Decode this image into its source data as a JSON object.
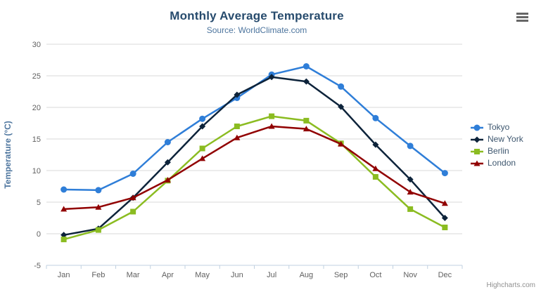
{
  "header": {
    "title": "Monthly Average Temperature",
    "subtitle": "Source: WorldClimate.com"
  },
  "export_menu": {
    "icon": "hamburger-icon"
  },
  "credits": {
    "label": "Highcharts.com"
  },
  "chart_data": {
    "type": "line",
    "title": "Monthly Average Temperature",
    "subtitle": "Source: WorldClimate.com",
    "categories": [
      "Jan",
      "Feb",
      "Mar",
      "Apr",
      "May",
      "Jun",
      "Jul",
      "Aug",
      "Sep",
      "Oct",
      "Nov",
      "Dec"
    ],
    "series": [
      {
        "name": "Tokyo",
        "color": "#2f7ed8",
        "marker": "circle",
        "values": [
          7.0,
          6.9,
          9.5,
          14.5,
          18.2,
          21.5,
          25.2,
          26.5,
          23.3,
          18.3,
          13.9,
          9.6
        ]
      },
      {
        "name": "New York",
        "color": "#0d233a",
        "marker": "diamond",
        "values": [
          -0.2,
          0.8,
          5.7,
          11.3,
          17.0,
          22.0,
          24.8,
          24.1,
          20.1,
          14.1,
          8.6,
          2.5
        ]
      },
      {
        "name": "Berlin",
        "color": "#8bbc21",
        "marker": "square",
        "values": [
          -0.9,
          0.6,
          3.5,
          8.4,
          13.5,
          17.0,
          18.6,
          17.9,
          14.3,
          9.0,
          3.9,
          1.0
        ]
      },
      {
        "name": "London",
        "color": "#910000",
        "marker": "triangle",
        "values": [
          3.9,
          4.2,
          5.7,
          8.5,
          11.9,
          15.2,
          17.0,
          16.6,
          14.2,
          10.3,
          6.6,
          4.8
        ]
      }
    ],
    "xlabel": "",
    "ylabel": "Temperature (°C)",
    "ylim": [
      -5,
      30
    ],
    "ytick_step": 5,
    "grid": true,
    "legend_position": "right",
    "colors": {
      "grid_line": "#d8d8d8",
      "axis_line": "#c0d0e0",
      "axis_label": "#606060",
      "axis_title": "#4d759e",
      "title": "#274b6d",
      "subtitle": "#4d759e",
      "legend_text": "#3E576F",
      "credits_text": "#909090"
    }
  }
}
